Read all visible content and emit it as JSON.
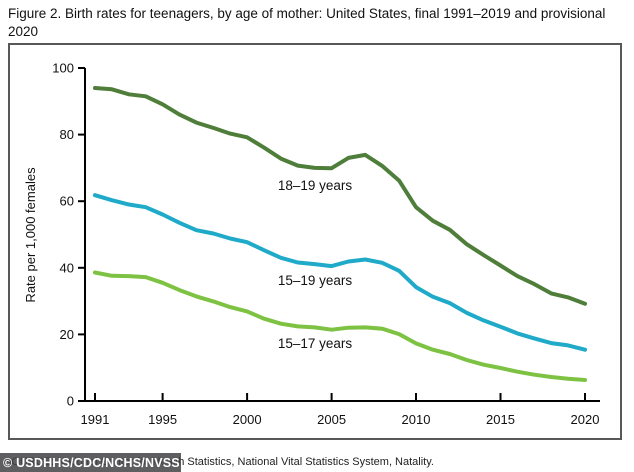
{
  "title": "Figure 2. Birth rates for teenagers, by age of mother: United States, final 1991–2019 and provisional 2020",
  "source": "SOURCE: National Center for Health Statistics, National Vital Statistics System, Natality.",
  "watermark": "© USDHHS/CDC/NCHS/NVSS",
  "colors": {
    "series_18_19": "#4f7e3a",
    "series_15_19": "#1eaac8",
    "series_15_17": "#7dc242",
    "axis": "#000000",
    "frame": "#58585a"
  },
  "chart_data": {
    "type": "line",
    "title": "Figure 2. Birth rates for teenagers, by age of mother: United States, final 1991–2019 and provisional 2020",
    "xlabel": "",
    "ylabel": "Rate per 1,000 females",
    "xlim": [
      1991,
      2020
    ],
    "ylim": [
      0,
      100
    ],
    "x_ticks": [
      1991,
      1995,
      2000,
      2005,
      2010,
      2015,
      2020
    ],
    "y_ticks": [
      0,
      20,
      40,
      60,
      80,
      100
    ],
    "grid": false,
    "legend_position": "inline-labels-on-lines",
    "x": [
      1991,
      1992,
      1993,
      1994,
      1995,
      1996,
      1997,
      1998,
      1999,
      2000,
      2001,
      2002,
      2003,
      2004,
      2005,
      2006,
      2007,
      2008,
      2009,
      2010,
      2011,
      2012,
      2013,
      2014,
      2015,
      2016,
      2017,
      2018,
      2019,
      2020
    ],
    "series": [
      {
        "name": "18–19 years",
        "color": "#4f7e3a",
        "values": [
          94.0,
          93.6,
          92.1,
          91.5,
          89.1,
          86.0,
          83.6,
          82.0,
          80.3,
          79.2,
          76.1,
          72.8,
          70.7,
          70.0,
          69.9,
          73.0,
          73.9,
          70.6,
          66.2,
          58.2,
          54.1,
          51.4,
          47.1,
          43.8,
          40.7,
          37.5,
          35.1,
          32.3,
          31.1,
          29.2
        ]
      },
      {
        "name": "15–19 years",
        "color": "#1eaac8",
        "values": [
          61.8,
          60.3,
          59.0,
          58.2,
          56.0,
          53.5,
          51.3,
          50.3,
          48.8,
          47.7,
          45.3,
          43.0,
          41.6,
          41.1,
          40.5,
          41.9,
          42.5,
          41.5,
          39.1,
          34.2,
          31.3,
          29.4,
          26.5,
          24.2,
          22.3,
          20.3,
          18.8,
          17.4,
          16.7,
          15.4
        ]
      },
      {
        "name": "15–17 years",
        "color": "#7dc242",
        "values": [
          38.6,
          37.6,
          37.5,
          37.2,
          35.5,
          33.3,
          31.4,
          29.9,
          28.2,
          26.9,
          24.7,
          23.2,
          22.4,
          22.1,
          21.4,
          22.0,
          22.1,
          21.7,
          20.1,
          17.3,
          15.4,
          14.1,
          12.3,
          10.9,
          9.9,
          8.8,
          7.9,
          7.2,
          6.7,
          6.3
        ]
      }
    ]
  }
}
